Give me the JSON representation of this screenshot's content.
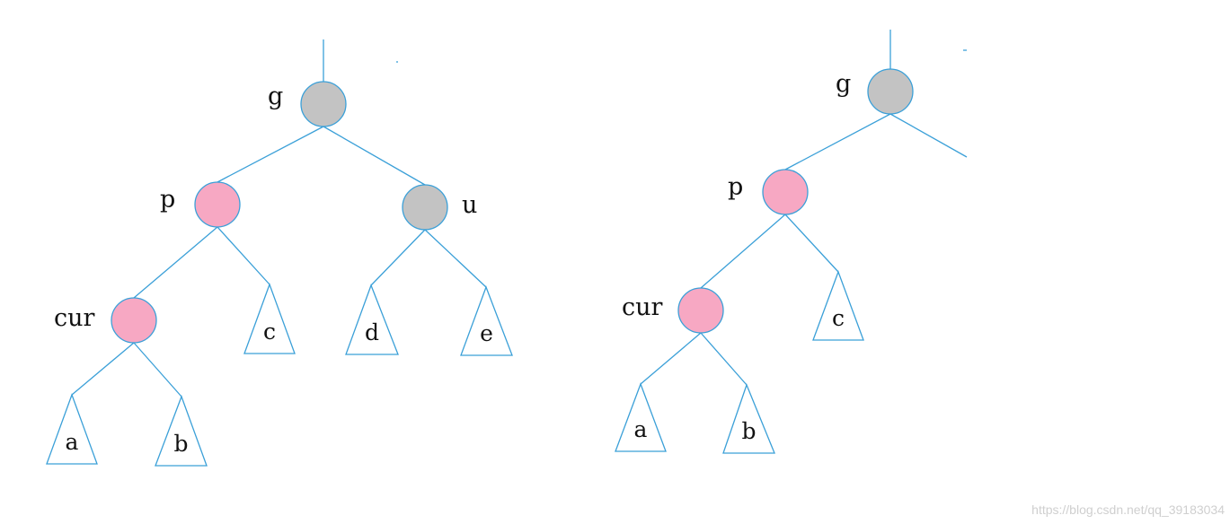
{
  "colors": {
    "line": "#3ba0d8",
    "black_node": "#c3c3c3",
    "red_node": "#f7a8c3"
  },
  "diagrams": [
    {
      "nodes": [
        {
          "id": "g",
          "label": "g",
          "color": "black"
        },
        {
          "id": "p",
          "label": "p",
          "color": "red"
        },
        {
          "id": "u",
          "label": "u",
          "color": "black"
        },
        {
          "id": "cur",
          "label": "cur",
          "color": "red"
        }
      ],
      "subtrees": [
        {
          "id": "a",
          "label": "a"
        },
        {
          "id": "b",
          "label": "b"
        },
        {
          "id": "c",
          "label": "c"
        },
        {
          "id": "d",
          "label": "d"
        },
        {
          "id": "e",
          "label": "e"
        }
      ]
    },
    {
      "nodes": [
        {
          "id": "g",
          "label": "g",
          "color": "black"
        },
        {
          "id": "p",
          "label": "p",
          "color": "red"
        },
        {
          "id": "cur",
          "label": "cur",
          "color": "red"
        }
      ],
      "subtrees": [
        {
          "id": "a",
          "label": "a"
        },
        {
          "id": "b",
          "label": "b"
        },
        {
          "id": "c",
          "label": "c"
        }
      ]
    }
  ],
  "watermark": "https://blog.csdn.net/qq_39183034"
}
